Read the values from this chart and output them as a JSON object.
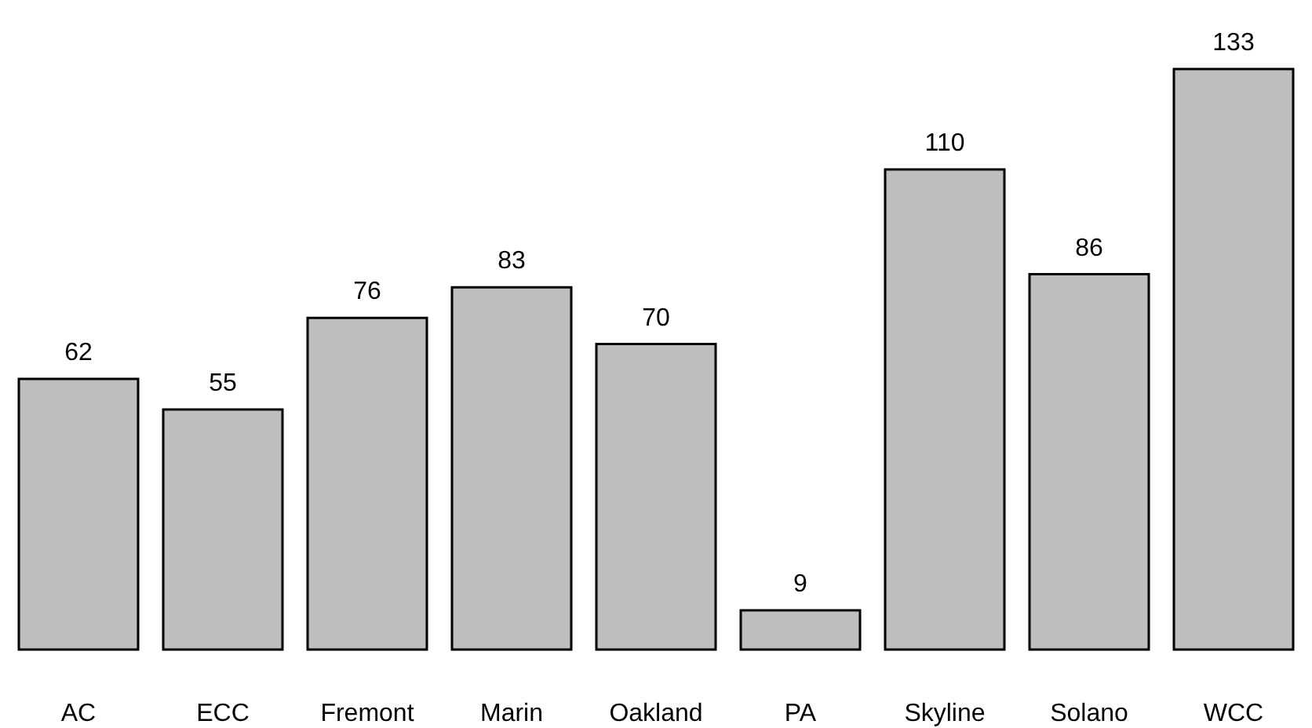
{
  "chart_data": {
    "type": "bar",
    "categories": [
      "AC",
      "ECC",
      "Fremont",
      "Marin",
      "Oakland",
      "PA",
      "Skyline",
      "Solano",
      "WCC"
    ],
    "values": [
      62,
      55,
      76,
      83,
      70,
      9,
      110,
      86,
      133
    ],
    "color": "#bebebe",
    "data_labels": true
  }
}
